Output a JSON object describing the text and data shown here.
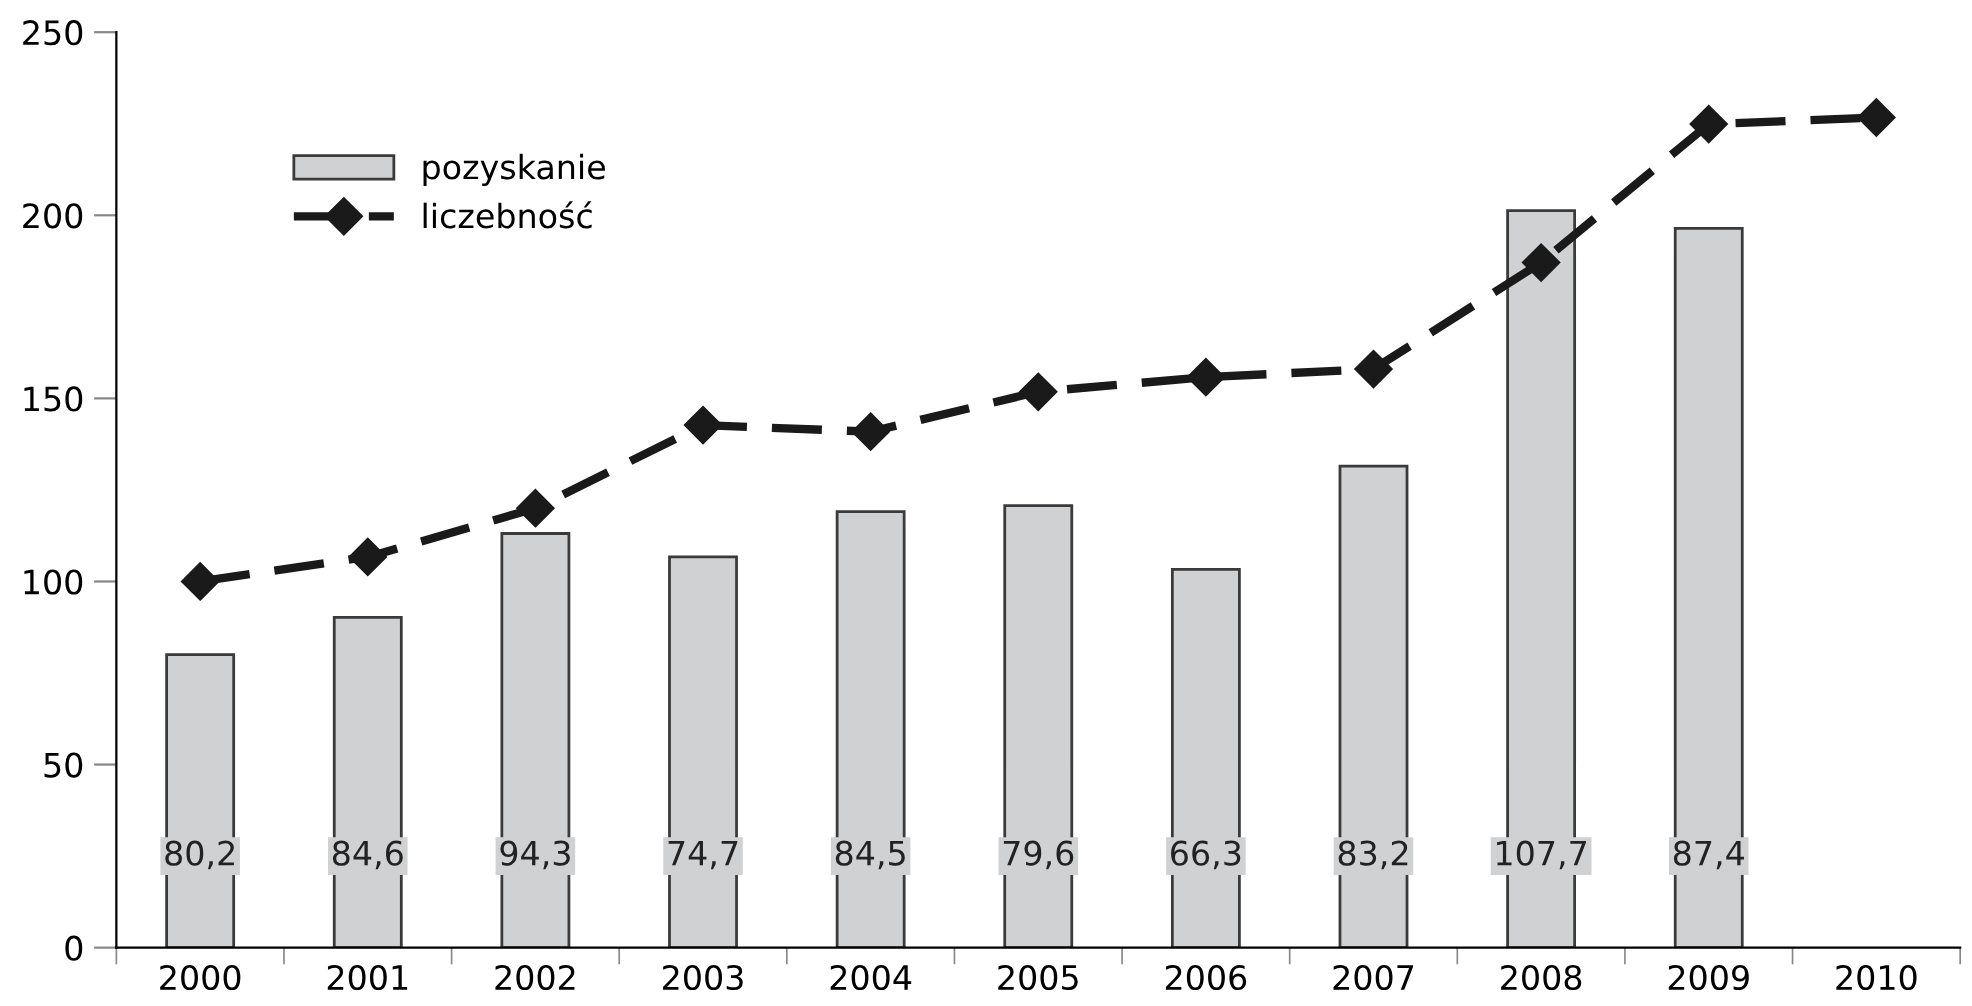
{
  "chart_data": {
    "type": "bar",
    "categories": [
      "2000",
      "2001",
      "2002",
      "2003",
      "2004",
      "2005",
      "2006",
      "2007",
      "2008",
      "2009",
      "2010"
    ],
    "series": [
      {
        "name": "pozyskanie",
        "color": "#d0d1d3",
        "values": [
          80.0,
          90.2,
          113.1,
          106.7,
          119.1,
          120.7,
          103.3,
          131.5,
          201.3,
          196.4,
          null
        ]
      },
      {
        "name": "liczebność",
        "type": "line",
        "color": "#1a1a1a",
        "marker": "diamond",
        "line_style": "dashed",
        "values": [
          100,
          106.7,
          120,
          142.7,
          140.9,
          151.8,
          155.8,
          158,
          187.1,
          224.9,
          226.7
        ]
      }
    ],
    "annotations": [
      "80,2",
      "84,6",
      "94,3",
      "74,7",
      "84,5",
      "79,6",
      "66,3",
      "83,2",
      "107,7",
      "87,4"
    ],
    "ylim": [
      0,
      250
    ],
    "yticks": [
      0,
      50,
      100,
      150,
      200,
      250
    ],
    "grid": false,
    "legend": "top left"
  }
}
